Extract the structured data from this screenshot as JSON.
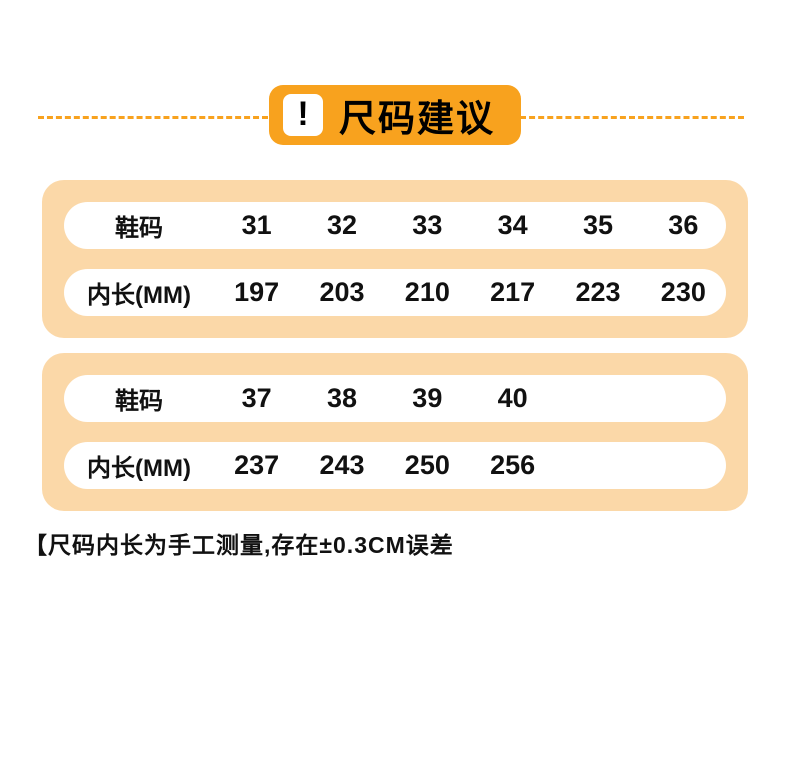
{
  "colors": {
    "accent_orange": "#f8a21e",
    "panel_peach": "#fbd8a8",
    "pill_white": "#ffffff",
    "text_black": "#111111"
  },
  "header": {
    "icon_glyph": "!",
    "title": "尺码建议"
  },
  "tables": [
    {
      "rows": [
        {
          "label": "鞋码",
          "values": [
            "31",
            "32",
            "33",
            "34",
            "35",
            "36"
          ]
        },
        {
          "label": "内长(MM)",
          "values": [
            "197",
            "203",
            "210",
            "217",
            "223",
            "230"
          ]
        }
      ]
    },
    {
      "rows": [
        {
          "label": "鞋码",
          "values": [
            "37",
            "38",
            "39",
            "40",
            "",
            ""
          ]
        },
        {
          "label": "内长(MM)",
          "values": [
            "237",
            "243",
            "250",
            "256",
            "",
            ""
          ]
        }
      ]
    }
  ],
  "footnote": "【尺码内长为手工测量,存在±0.3CM误差",
  "chart_data": [
    {
      "type": "table",
      "title": "尺码建议",
      "columns": [
        "鞋码",
        "31",
        "32",
        "33",
        "34",
        "35",
        "36"
      ],
      "rows": [
        [
          "内长(MM)",
          "197",
          "203",
          "210",
          "217",
          "223",
          "230"
        ]
      ]
    },
    {
      "type": "table",
      "title": "尺码建议",
      "columns": [
        "鞋码",
        "37",
        "38",
        "39",
        "40"
      ],
      "rows": [
        [
          "内长(MM)",
          "237",
          "243",
          "250",
          "256"
        ]
      ],
      "note": "【尺码内长为手工测量,存在±0.3CM误差"
    }
  ]
}
